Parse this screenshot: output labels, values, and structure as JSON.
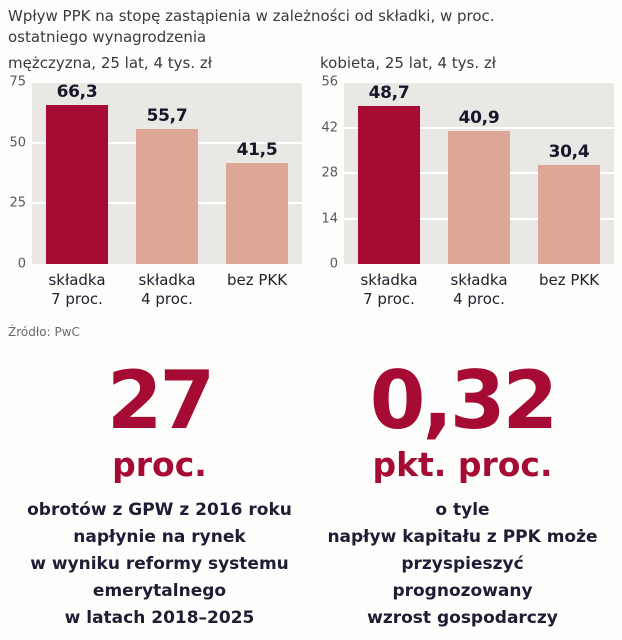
{
  "header": {
    "title": "Wpływ PPK na stopę zastąpienia w zależności od składki, w proc.\nostatniego wynagrodzenia"
  },
  "colors": {
    "primary_bar": "#a60c33",
    "secondary_bar": "#dda696",
    "accent_text": "#a60c33",
    "dark_text": "#1d1d33",
    "plot_background": "#e9e8e5"
  },
  "chart_data": [
    {
      "type": "bar",
      "title": "mężczyzna, 25 lat, 4 tys. zł",
      "categories": [
        "składka\n7 proc.",
        "składka\n4 proc.",
        "bez PKK"
      ],
      "values": [
        66.3,
        55.7,
        41.5
      ],
      "value_labels": [
        "66,3",
        "55,7",
        "41,5"
      ],
      "bar_colors": [
        "#a60c33",
        "#dda696",
        "#dda696"
      ],
      "xlabel": "",
      "ylabel": "",
      "ylim": [
        0,
        75
      ],
      "yticks": [
        0,
        25,
        50,
        75
      ],
      "grid": true,
      "legend": "none"
    },
    {
      "type": "bar",
      "title": "kobieta, 25 lat, 4 tys. zł",
      "categories": [
        "składka\n7 proc.",
        "składka\n4 proc.",
        "bez PKK"
      ],
      "values": [
        48.7,
        40.9,
        30.4
      ],
      "value_labels": [
        "48,7",
        "40,9",
        "30,4"
      ],
      "bar_colors": [
        "#a60c33",
        "#dda696",
        "#dda696"
      ],
      "xlabel": "",
      "ylabel": "",
      "ylim": [
        0,
        56
      ],
      "yticks": [
        0,
        14,
        28,
        42,
        56
      ],
      "grid": true,
      "legend": "none"
    }
  ],
  "source": "Źródło: PwC",
  "stats": [
    {
      "number": "27",
      "unit": "proc.",
      "description": "obrotów z GPW z 2016 roku\nnapłynie na rynek\nw wyniku reformy systemu\nemerytalnego\nw latach 2018–2025"
    },
    {
      "number": "0,32",
      "unit": "pkt. proc.",
      "description": "o tyle\nnapływ kapitału z PPK może\nprzyspieszyć\nprognozowany\nwzrost gospodarczy"
    }
  ]
}
